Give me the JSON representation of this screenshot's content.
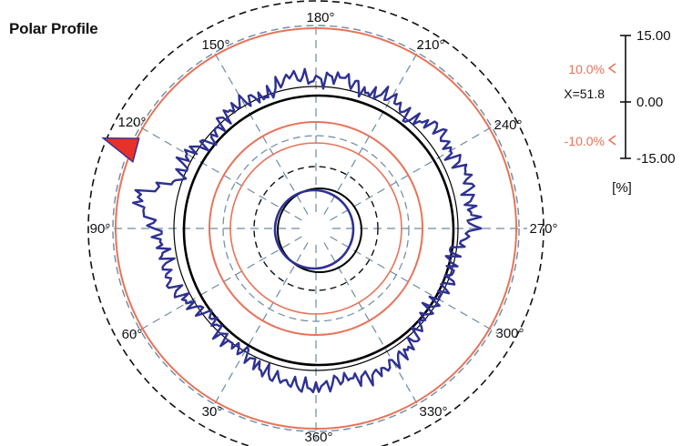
{
  "chart_data": {
    "type": "polar",
    "title": "Polar Profile",
    "angle_labels": [
      "180°",
      "210°",
      "240°",
      "270°",
      "300°",
      "330°",
      "360°",
      "30°",
      "60°",
      "90°",
      "120°",
      "150°"
    ],
    "mean_value": 51.8,
    "mean_label": "X=51.8",
    "tolerance": {
      "upper": 10.0,
      "lower": -10.0,
      "upper_label": "10.0%",
      "lower_label": "-10.0%"
    },
    "scale": {
      "ticks": [
        "15.00",
        "0.00",
        "-15.00"
      ],
      "unit": "[%]",
      "range": [
        -15,
        15
      ]
    },
    "colors": {
      "profile": "#2e3192",
      "tolerance": "#e8735a",
      "reference": "#000000",
      "grid": "#6d8aa3",
      "overflow_fill": "#e8312a"
    },
    "series": [
      {
        "name": "",
        "unit": "%",
        "angles_deg": [
          180,
          190,
          200,
          210,
          220,
          230,
          240,
          250,
          260,
          270,
          280,
          290,
          300,
          310,
          320,
          330,
          340,
          350,
          360,
          10,
          20,
          30,
          40,
          50,
          60,
          70,
          80,
          90,
          100,
          110,
          120,
          130,
          140,
          150,
          160,
          170
        ],
        "deviation_pct": [
          0.4,
          1.6,
          -0.3,
          1.2,
          -0.5,
          2.4,
          1.5,
          2.8,
          1.9,
          2.2,
          -1.6,
          -0.3,
          -1.0,
          -1.2,
          0.8,
          1.8,
          2.2,
          1.2,
          2.6,
          2.0,
          1.2,
          -0.6,
          -0.4,
          -1.8,
          0.4,
          2.0,
          1.4,
          2.6,
          6.8,
          -0.5,
          0.8,
          -1.8,
          -0.3,
          0.3,
          -0.9,
          1.8
        ]
      }
    ],
    "center_detail": {
      "series_offset_pct": 2.0
    }
  }
}
